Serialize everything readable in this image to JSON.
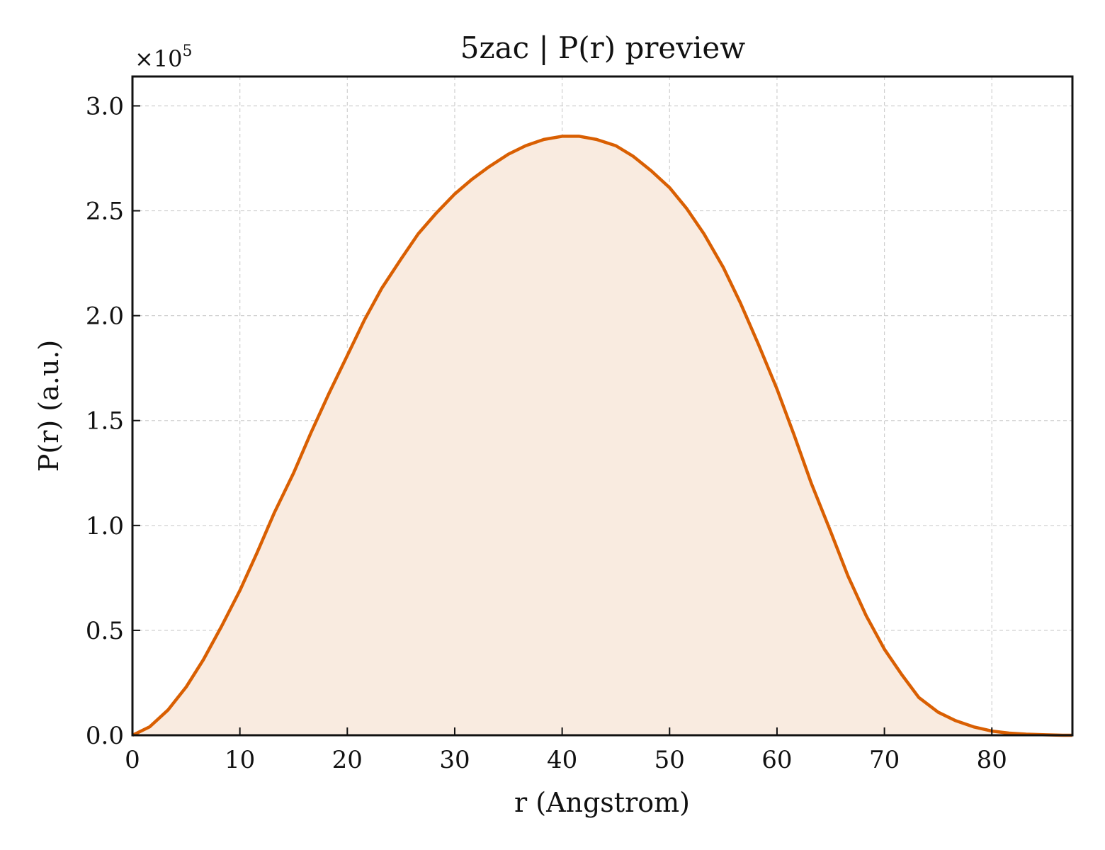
{
  "chart_data": {
    "type": "area",
    "title": "5zac | P(r) preview",
    "xlabel": "r (Angstrom)",
    "ylabel": "P(r) (a.u.)",
    "y_multiplier_label": "×10",
    "y_multiplier_exponent": "5",
    "xlim": [
      0,
      87.5
    ],
    "ylim": [
      0,
      3.14
    ],
    "x_ticks": [
      0,
      10,
      20,
      30,
      40,
      50,
      60,
      70,
      80
    ],
    "x_tick_labels": [
      "0",
      "10",
      "20",
      "30",
      "40",
      "50",
      "60",
      "70",
      "80"
    ],
    "y_ticks": [
      0,
      0.5,
      1.0,
      1.5,
      2.0,
      2.5,
      3.0
    ],
    "y_tick_labels": [
      "0.0",
      "0.5",
      "1.0",
      "1.5",
      "2.0",
      "2.5",
      "3.0"
    ],
    "grid": true,
    "line_color": "#d95f02",
    "fill_color": "#f9ebe0",
    "series": [
      {
        "x": [
          0,
          1.6,
          3.3,
          5.0,
          6.6,
          8.3,
          10.0,
          11.6,
          13.2,
          15.0,
          16.6,
          18.3,
          20.0,
          21.6,
          23.2,
          25.0,
          26.6,
          28.3,
          30.0,
          31.6,
          33.2,
          35.0,
          36.6,
          38.3,
          40.0,
          41.6,
          43.2,
          45.0,
          46.6,
          48.3,
          50.0,
          51.6,
          53.2,
          55.0,
          56.6,
          58.3,
          60.0,
          61.6,
          63.2,
          65.0,
          66.6,
          68.3,
          70.0,
          71.6,
          73.2,
          75.0,
          76.6,
          78.3,
          80.0,
          81.6,
          83.2,
          85.0,
          86.6,
          87.5
        ],
        "y": [
          0.0,
          0.04,
          0.12,
          0.23,
          0.36,
          0.52,
          0.69,
          0.87,
          1.06,
          1.25,
          1.44,
          1.63,
          1.81,
          1.98,
          2.13,
          2.27,
          2.39,
          2.49,
          2.58,
          2.65,
          2.71,
          2.77,
          2.81,
          2.84,
          2.855,
          2.855,
          2.84,
          2.81,
          2.76,
          2.69,
          2.61,
          2.51,
          2.39,
          2.23,
          2.06,
          1.86,
          1.65,
          1.43,
          1.2,
          0.97,
          0.76,
          0.57,
          0.41,
          0.29,
          0.18,
          0.11,
          0.07,
          0.04,
          0.02,
          0.01,
          0.005,
          0.002,
          0.0,
          0.0
        ]
      }
    ]
  }
}
